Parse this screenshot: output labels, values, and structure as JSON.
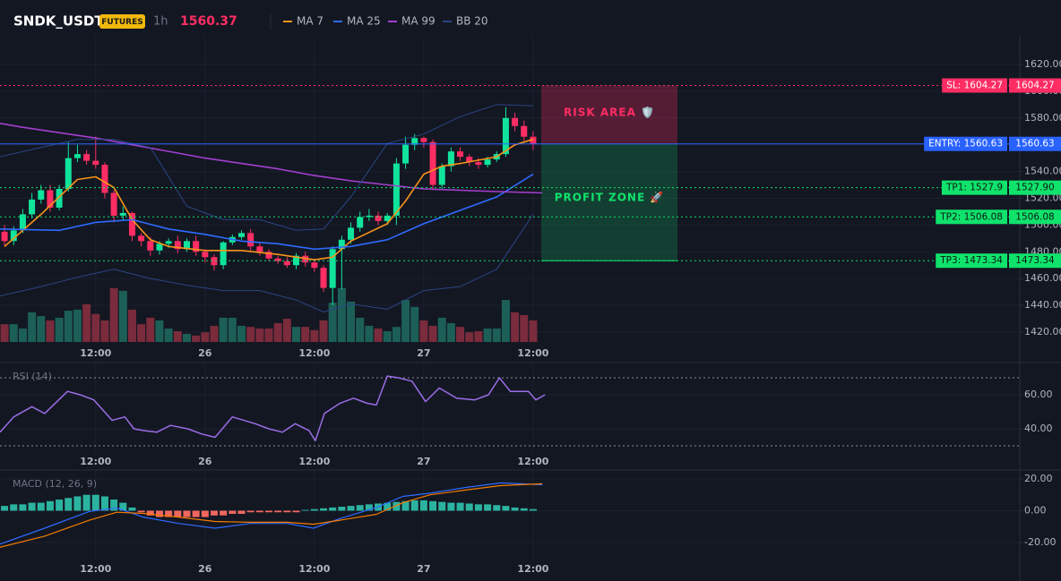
{
  "header": {
    "symbol": "SNDK_USDT",
    "badge": "FUTURES",
    "interval": "1h",
    "price": 1560.37
  },
  "chart_data": [
    {
      "type": "candlestick",
      "x": [
        2,
        3,
        4,
        5,
        6,
        7,
        8,
        9,
        10,
        11,
        12,
        13,
        14,
        15,
        16,
        17,
        18,
        19,
        20,
        21,
        22,
        23,
        24,
        25,
        26,
        27,
        28,
        29,
        30,
        31,
        32,
        33,
        34,
        35,
        36,
        37,
        38,
        39,
        40,
        41,
        42,
        43,
        44,
        45,
        46,
        47,
        48,
        49,
        50,
        51,
        52,
        53,
        54,
        55,
        56,
        57,
        58,
        59,
        60
      ],
      "open": [
        1495,
        1488,
        1496,
        1508,
        1519,
        1526,
        1513,
        1527,
        1550,
        1553,
        1548,
        1545,
        1524,
        1507,
        1509,
        1492,
        1488,
        1481,
        1486,
        1488,
        1482,
        1488,
        1480,
        1476,
        1470,
        1487,
        1491,
        1494,
        1484,
        1480,
        1475,
        1473,
        1470,
        1477,
        1472,
        1468,
        1453,
        1482,
        1489,
        1498,
        1506,
        1507,
        1503,
        1507,
        1546,
        1560,
        1565,
        1562,
        1530,
        1544,
        1555,
        1551,
        1547,
        1545,
        1549,
        1553,
        1580,
        1574,
        1566
      ],
      "high": [
        1500,
        1499,
        1512,
        1524,
        1530,
        1530,
        1530,
        1562,
        1560,
        1556,
        1566,
        1547,
        1526,
        1514,
        1510,
        1494,
        1491,
        1488,
        1490,
        1492,
        1490,
        1492,
        1482,
        1478,
        1488,
        1493,
        1496,
        1497,
        1487,
        1482,
        1477,
        1476,
        1479,
        1480,
        1475,
        1470,
        1484,
        1492,
        1502,
        1510,
        1512,
        1510,
        1509,
        1550,
        1566,
        1568,
        1566,
        1564,
        1546,
        1558,
        1558,
        1553,
        1550,
        1551,
        1555,
        1588,
        1584,
        1578,
        1570
      ],
      "low": [
        1484,
        1485,
        1494,
        1505,
        1516,
        1510,
        1511,
        1525,
        1547,
        1545,
        1542,
        1520,
        1502,
        1503,
        1488,
        1484,
        1477,
        1478,
        1483,
        1479,
        1480,
        1477,
        1472,
        1466,
        1467,
        1485,
        1489,
        1481,
        1477,
        1473,
        1471,
        1468,
        1467,
        1469,
        1465,
        1450,
        1440,
        1452,
        1486,
        1495,
        1503,
        1500,
        1500,
        1500,
        1542,
        1556,
        1558,
        1526,
        1527,
        1540,
        1548,
        1544,
        1542,
        1543,
        1547,
        1551,
        1570,
        1563,
        1556
      ],
      "close": [
        1488,
        1496,
        1508,
        1519,
        1526,
        1513,
        1527,
        1550,
        1553,
        1548,
        1545,
        1524,
        1507,
        1509,
        1492,
        1488,
        1481,
        1486,
        1488,
        1482,
        1488,
        1480,
        1476,
        1470,
        1487,
        1491,
        1494,
        1484,
        1480,
        1475,
        1473,
        1470,
        1477,
        1472,
        1468,
        1453,
        1482,
        1489,
        1498,
        1506,
        1507,
        1503,
        1507,
        1546,
        1560,
        1565,
        1562,
        1530,
        1544,
        1555,
        1551,
        1547,
        1545,
        1549,
        1553,
        1580,
        1574,
        1566,
        1560.37
      ],
      "volume": [
        33,
        33,
        25,
        55,
        48,
        40,
        45,
        58,
        60,
        70,
        52,
        40,
        100,
        95,
        60,
        33,
        45,
        40,
        25,
        20,
        15,
        12,
        18,
        30,
        45,
        45,
        30,
        28,
        25,
        25,
        35,
        43,
        28,
        28,
        22,
        40,
        73,
        100,
        75,
        45,
        30,
        25,
        20,
        28,
        78,
        65,
        40,
        30,
        45,
        35,
        28,
        18,
        20,
        25,
        25,
        78,
        55,
        50,
        40
      ],
      "volume_ylim": [
        0,
        108
      ],
      "up_color": "#10e39c",
      "down_color": "#ff2d64",
      "volume_up_color": "#1c5f57",
      "volume_down_color": "#7a2b3c",
      "xlim": [
        1.5,
        113.4
      ],
      "xticks": [
        {
          "value": 12,
          "label": "12:00"
        },
        {
          "value": 24,
          "label": "26"
        },
        {
          "value": 36,
          "label": "12:00"
        },
        {
          "value": 48,
          "label": "27"
        },
        {
          "value": 60,
          "label": "12:00"
        }
      ],
      "ylim": [
        1412.6,
        1641.4
      ],
      "yticks": [
        {
          "value": 1420,
          "label": "1420.00"
        },
        {
          "value": 1440,
          "label": "1440.00"
        },
        {
          "value": 1460,
          "label": "1460.00"
        },
        {
          "value": 1480,
          "label": "1480.00"
        },
        {
          "value": 1500,
          "label": "1500.00"
        },
        {
          "value": 1520,
          "label": "1520.00"
        },
        {
          "value": 1540,
          "label": "1540.00"
        },
        {
          "value": 1560,
          "label": "1560.00"
        },
        {
          "value": 1580,
          "label": "1580.00"
        },
        {
          "value": 1600,
          "label": "1600.00"
        },
        {
          "value": 1620,
          "label": "1620.00"
        }
      ],
      "grid": true,
      "series": [
        {
          "name": "MA 7",
          "color": "#f7931a",
          "width": 1.6,
          "x": [
            2,
            6,
            10,
            12,
            14,
            16,
            18,
            20,
            24,
            28,
            32,
            36,
            38,
            40,
            44,
            46,
            48,
            50,
            52,
            56,
            58,
            60
          ],
          "values": [
            1484,
            1508,
            1534,
            1536,
            1528,
            1504,
            1489,
            1484,
            1481,
            1481,
            1478,
            1474,
            1476,
            1488,
            1501,
            1518,
            1538,
            1544,
            1546,
            1551,
            1560,
            1564
          ]
        },
        {
          "name": "MA 25",
          "color": "#2f6bff",
          "width": 1.6,
          "x": [
            1.5,
            8,
            12,
            16,
            20,
            24,
            28,
            32,
            36,
            40,
            44,
            48,
            52,
            56,
            60
          ],
          "values": [
            1497,
            1496,
            1502,
            1504,
            1497,
            1493,
            1488,
            1486,
            1482,
            1484,
            1489,
            1501,
            1511,
            1521,
            1538
          ]
        },
        {
          "name": "MA 99",
          "color": "#a43fd0",
          "width": 1.6,
          "x": [
            1.5,
            4,
            8,
            12,
            16,
            20,
            24,
            28,
            32,
            36,
            40,
            44,
            48,
            52,
            56,
            61
          ],
          "values": [
            1576,
            1573,
            1569,
            1565,
            1560,
            1555,
            1550,
            1546,
            1542,
            1537,
            1533,
            1530,
            1527,
            1526,
            1525,
            1524
          ]
        },
        {
          "name": "BB 20",
          "color": "#2a4583",
          "width": 1,
          "x": [
            1.5,
            6,
            10,
            14,
            18,
            22,
            26,
            30,
            34,
            37,
            40,
            44,
            48,
            52,
            56,
            60
          ],
          "values": [
            1551,
            1558,
            1564,
            1564,
            1558,
            1514,
            1504,
            1504,
            1496,
            1497,
            1521,
            1561,
            1568,
            1581,
            1590,
            1589
          ],
          "lower_values": [
            1447,
            1454,
            1461,
            1467,
            1460,
            1455,
            1451,
            1451,
            1444,
            1435,
            1441,
            1437,
            1451,
            1454,
            1467,
            1508
          ]
        }
      ],
      "levels": [
        {
          "label": "SL: 1604.27",
          "value": 1604.27,
          "color": "#ff2d64",
          "text_color": "#ffffff",
          "dashed": true
        },
        {
          "label": "ENTRY: 1560.63",
          "value": 1560.63,
          "color": "#2962ff",
          "text_color": "#ffffff",
          "dashed": false
        },
        {
          "label": "TP1: 1527.9",
          "value": 1527.9,
          "value_label": "1527.90",
          "color": "#10e36c",
          "text_color": "#0b1a12",
          "dashed": true
        },
        {
          "label": "TP2: 1506.08",
          "value": 1506.08,
          "color": "#10e36c",
          "text_color": "#0b1a12",
          "dashed": true
        },
        {
          "label": "TP3: 1473.34",
          "value": 1473.34,
          "color": "#10e36c",
          "text_color": "#0b1a12",
          "dashed": true
        }
      ],
      "risk_label": "RISK AREA 🛡️",
      "risk_color": "#ff2d64",
      "profit_label": "PROFIT ZONE 🚀",
      "profit_color": "#10e36c"
    },
    {
      "type": "line",
      "title": "RSI (14)",
      "xlim": [
        1.5,
        113.4
      ],
      "xticks": [
        {
          "value": 12,
          "label": "12:00"
        },
        {
          "value": 24,
          "label": "26"
        },
        {
          "value": 36,
          "label": "12:00"
        },
        {
          "value": 48,
          "label": "27"
        },
        {
          "value": 60,
          "label": "12:00"
        }
      ],
      "ylim": [
        26.3,
        77.4
      ],
      "yticks": [
        {
          "value": 40,
          "label": "40.00"
        },
        {
          "value": 60,
          "label": "60.00"
        }
      ],
      "bands": [
        70,
        30
      ],
      "grid": true,
      "series": [
        {
          "color": "#9a6de6",
          "width": 1.5,
          "x": [
            1.5,
            3,
            5,
            6.4,
            8.9,
            10.3,
            11.8,
            13.8,
            15.2,
            16.2,
            17.2,
            18.7,
            20.2,
            22.1,
            23.6,
            25.1,
            27,
            29.5,
            31,
            32.5,
            33.9,
            35.4,
            36.1,
            37.1,
            38.8,
            40.3,
            41.8,
            42.8,
            44,
            45.2,
            46.7,
            48.2,
            49.7,
            51.6,
            53.6,
            55.1,
            56.3,
            57.5,
            59.5,
            60.3,
            61.3
          ],
          "values": [
            38,
            47,
            53,
            49,
            62,
            60,
            57,
            45,
            47,
            40,
            39,
            38,
            42,
            40,
            37,
            35,
            47,
            43,
            40,
            38,
            43,
            39,
            33,
            49,
            55,
            58,
            55,
            54,
            71,
            70,
            68,
            56,
            64,
            58,
            57,
            60,
            70,
            62,
            62,
            57,
            60
          ]
        }
      ]
    },
    {
      "type": "macd",
      "title": "MACD (12, 26, 9)",
      "xlim": [
        1.5,
        113.4
      ],
      "xticks": [
        {
          "value": 12,
          "label": "12:00"
        },
        {
          "value": 24,
          "label": "26"
        },
        {
          "value": 36,
          "label": "12:00"
        },
        {
          "value": 48,
          "label": "27"
        },
        {
          "value": 60,
          "label": "12:00"
        }
      ],
      "ylim": [
        -30.7,
        23.9
      ],
      "yticks": [
        {
          "value": -20,
          "label": "-20.00"
        },
        {
          "value": 0,
          "label": "0.00"
        },
        {
          "value": 20,
          "label": "20.00"
        }
      ],
      "grid": true,
      "x": [
        2,
        3,
        4,
        5,
        6,
        7,
        8,
        9,
        10,
        11,
        12,
        13,
        14,
        15,
        16,
        17,
        18,
        19,
        20,
        21,
        22,
        23,
        24,
        25,
        26,
        27,
        28,
        29,
        30,
        31,
        32,
        33,
        34,
        35,
        36,
        37,
        38,
        39,
        40,
        41,
        42,
        43,
        44,
        45,
        46,
        47,
        48,
        49,
        50,
        51,
        52,
        53,
        54,
        55,
        56,
        57,
        58,
        59,
        60
      ],
      "histogram": [
        3,
        4,
        4,
        5,
        5,
        6,
        7,
        8,
        9,
        10,
        10,
        9,
        7,
        5,
        2,
        -1,
        -3,
        -4,
        -4,
        -4,
        -4,
        -4,
        -4,
        -3,
        -3,
        -2,
        -2,
        -1,
        -1,
        -1,
        -1,
        -1,
        -1,
        0.5,
        1,
        1.5,
        2,
        2.5,
        3,
        3.5,
        4,
        4.5,
        5,
        5.5,
        6,
        6.5,
        6.5,
        6,
        5.5,
        5,
        5,
        4.5,
        4,
        4,
        3.5,
        3,
        2,
        1.5,
        1
      ],
      "up_color": "#2bb3a0",
      "down_color": "#f0675f",
      "series": [
        {
          "color": "#2f6bff",
          "width": 1.2,
          "x": [
            1.5,
            6.4,
            11.3,
            14.3,
            17.2,
            21.1,
            25.1,
            29,
            33,
            35.9,
            38.8,
            42.8,
            45.7,
            48.7,
            52.6,
            56.5,
            61
          ],
          "values": [
            -21,
            -11,
            -0.5,
            1.7,
            -4,
            -8,
            -11,
            -8,
            -8,
            -11,
            -5,
            2,
            9,
            11,
            14.6,
            17.5,
            16.3
          ]
        },
        {
          "color": "#f57c00",
          "width": 1.2,
          "x": [
            1.5,
            6.4,
            11.3,
            14.3,
            17.2,
            21.1,
            25.1,
            29,
            33,
            35.9,
            38.8,
            42.8,
            45.7,
            48.7,
            52.6,
            56.5,
            61
          ],
          "values": [
            -23,
            -16,
            -6,
            -1,
            -1.7,
            -4,
            -6.8,
            -7.3,
            -7.3,
            -8.5,
            -6,
            -2.3,
            5,
            10,
            13,
            15.8,
            16.9
          ]
        }
      ]
    }
  ]
}
